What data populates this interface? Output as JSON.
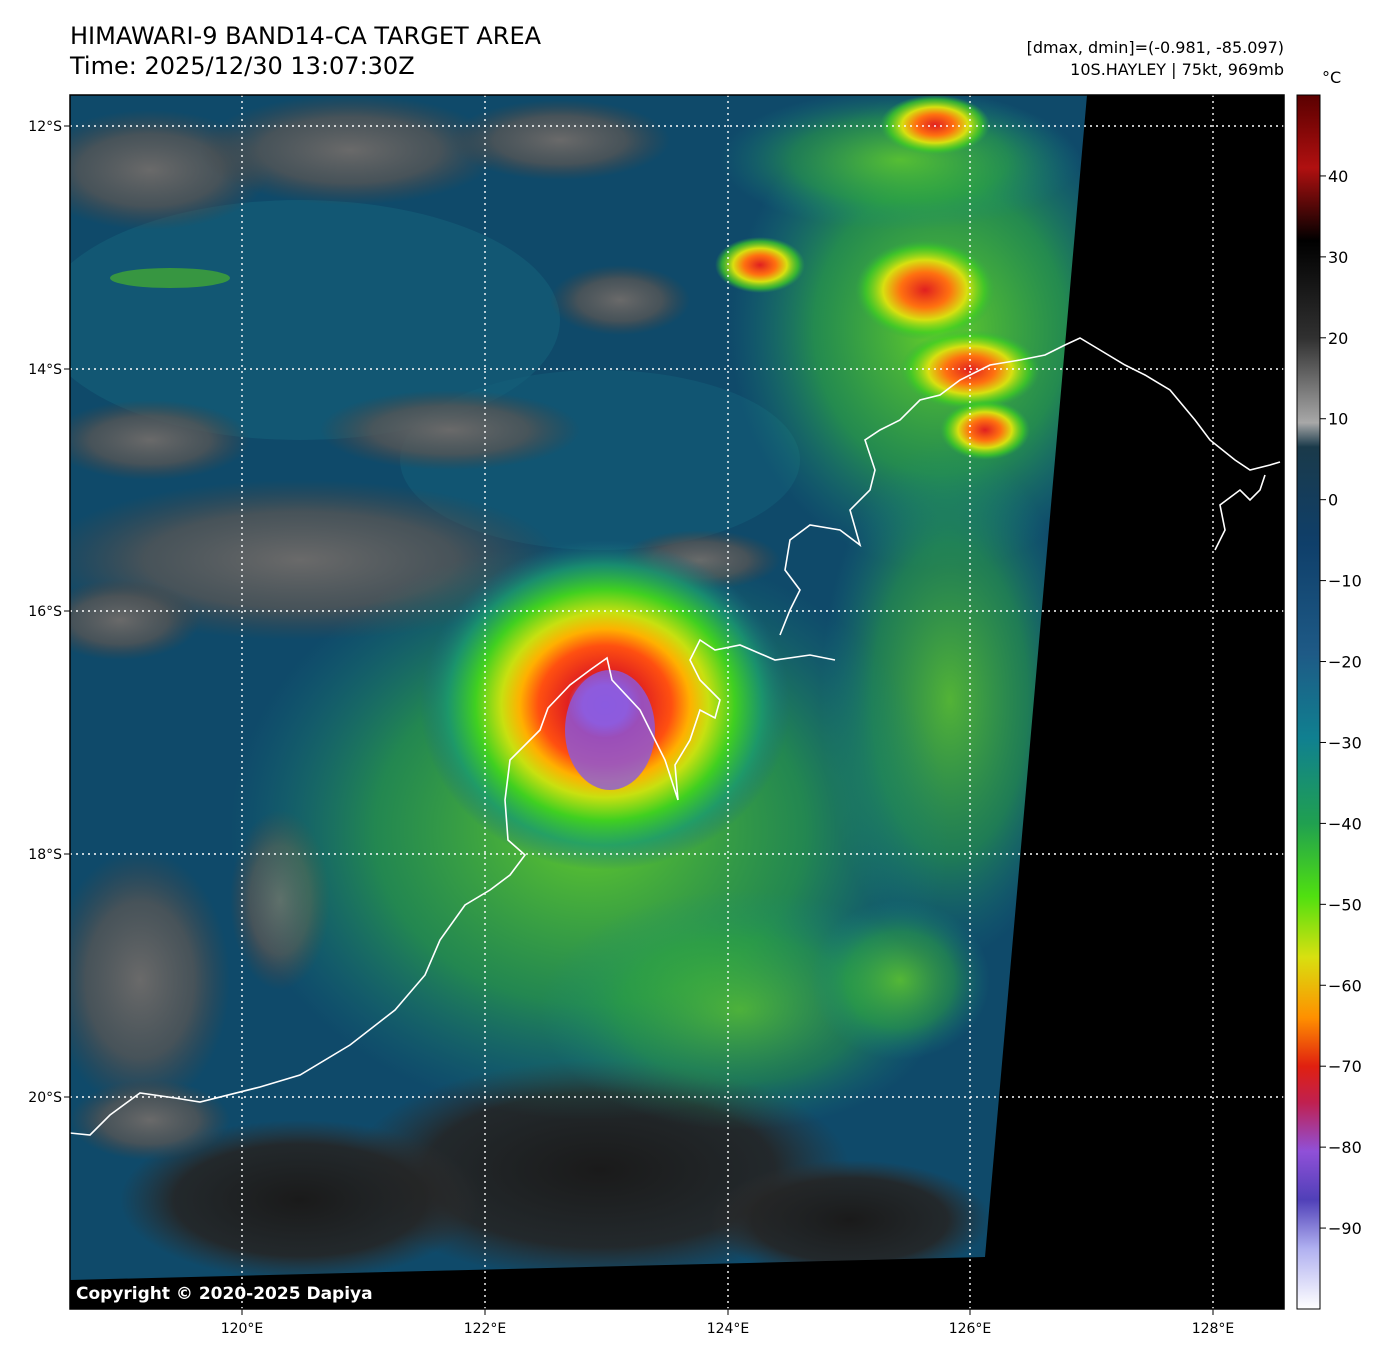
{
  "header": {
    "title_line1": "HIMAWARI-9 BAND14-CA TARGET AREA",
    "title_line2": "Time: 2025/12/30 13:07:30Z",
    "stats": "[dmax, dmin]=(-0.981, -85.097)",
    "storm": "10S.HAYLEY | 75kt, 969mb"
  },
  "colorbar": {
    "unit": "°C",
    "ticks": [
      "40",
      "30",
      "20",
      "10",
      "0",
      "−10",
      "−20",
      "−30",
      "−40",
      "−50",
      "−60",
      "−70",
      "−80",
      "−90"
    ],
    "range_c": [
      -100,
      50
    ]
  },
  "map": {
    "lon_labels": [
      "120°E",
      "122°E",
      "124°E",
      "126°E",
      "128°E"
    ],
    "lat_labels": [
      "12°S",
      "14°S",
      "16°S",
      "18°S",
      "20°S"
    ]
  },
  "copyright": "Copyright © 2020-2025 Dapiya"
}
